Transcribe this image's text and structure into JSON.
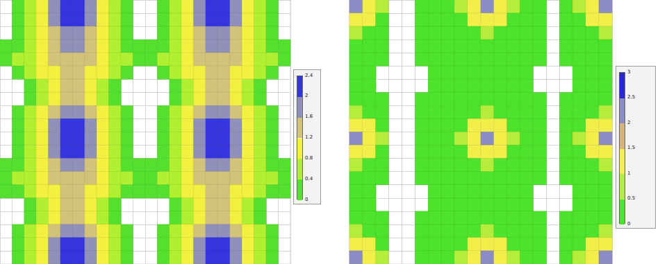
{
  "chart_data": [
    {
      "type": "heatmap",
      "grid": true,
      "tick_labels": false,
      "cells": [
        [
          null,
          0.2,
          0.6,
          1,
          1.8,
          2.2,
          2.2,
          1.8,
          1,
          0.6,
          0.2,
          null,
          null,
          0.2,
          0.6,
          1,
          1.8,
          2.2,
          2.2,
          1.8,
          1,
          0.6,
          0.2,
          null
        ],
        [
          null,
          0.2,
          0.6,
          1,
          1.8,
          2.2,
          2.2,
          1.8,
          1,
          0.6,
          0.2,
          null,
          null,
          0.2,
          0.6,
          1,
          1.8,
          2.2,
          2.2,
          1.8,
          1,
          0.6,
          0.2,
          null
        ],
        [
          null,
          0.2,
          0.6,
          1,
          1.4,
          1.8,
          1.8,
          1.4,
          1,
          0.6,
          0.2,
          null,
          null,
          0.2,
          0.6,
          1,
          1.4,
          1.8,
          1.8,
          1.4,
          1,
          0.6,
          0.2,
          null
        ],
        [
          0.2,
          0.2,
          0.6,
          1,
          1.4,
          1.8,
          1.8,
          1.4,
          1,
          0.6,
          0.2,
          0.2,
          0.2,
          0.2,
          0.6,
          1,
          1.4,
          1.8,
          1.8,
          1.4,
          1,
          0.6,
          0.2,
          0.2
        ],
        [
          0.2,
          0.6,
          0.6,
          1,
          1.4,
          1.4,
          1.4,
          1.4,
          1,
          0.6,
          0.6,
          0.2,
          0.2,
          0.6,
          0.6,
          1,
          1.4,
          1.4,
          1.4,
          1.4,
          1,
          0.6,
          0.6,
          0.2
        ],
        [
          null,
          0.2,
          0.6,
          1,
          1,
          1.4,
          1.4,
          1,
          1,
          0.6,
          0.2,
          null,
          null,
          0.2,
          0.6,
          1,
          1,
          1.4,
          1.4,
          1,
          1,
          0.6,
          0.2,
          null
        ],
        [
          null,
          null,
          0.2,
          0.6,
          1,
          1.4,
          1.4,
          1,
          0.6,
          0.2,
          null,
          null,
          null,
          null,
          0.2,
          0.6,
          1,
          1.4,
          1.4,
          1,
          0.6,
          0.2,
          null,
          null
        ],
        [
          null,
          null,
          0.2,
          0.6,
          1,
          1.4,
          1.4,
          1,
          0.6,
          0.2,
          null,
          null,
          null,
          null,
          0.2,
          0.6,
          1,
          1.4,
          1.4,
          1,
          0.6,
          0.2,
          null,
          null
        ],
        [
          null,
          0.2,
          0.6,
          1,
          1.4,
          1.8,
          1.8,
          1.4,
          1,
          0.6,
          0.2,
          null,
          null,
          0.2,
          0.6,
          1,
          1.4,
          1.8,
          1.8,
          1.4,
          1,
          0.6,
          0.2,
          null
        ],
        [
          null,
          0.2,
          0.6,
          1,
          1.8,
          2.2,
          2.2,
          1.8,
          1,
          0.6,
          0.2,
          null,
          null,
          0.2,
          0.6,
          1,
          1.8,
          2.2,
          2.2,
          1.8,
          1,
          0.6,
          0.2,
          null
        ],
        [
          null,
          0.2,
          0.6,
          1,
          1.8,
          2.2,
          2.2,
          1.8,
          1,
          0.6,
          0.2,
          null,
          null,
          0.2,
          0.6,
          1,
          1.8,
          2.2,
          2.2,
          1.8,
          1,
          0.6,
          0.2,
          null
        ],
        [
          null,
          0.2,
          0.6,
          1,
          1.8,
          2.2,
          2.2,
          1.8,
          1,
          0.6,
          0.2,
          null,
          null,
          0.2,
          0.6,
          1,
          1.8,
          2.2,
          2.2,
          1.8,
          1,
          0.6,
          0.2,
          null
        ],
        [
          0.2,
          0.2,
          0.6,
          1,
          1.4,
          1.8,
          1.8,
          1.4,
          1,
          0.6,
          0.2,
          0.2,
          0.2,
          0.2,
          0.6,
          1,
          1.4,
          1.8,
          1.8,
          1.4,
          1,
          0.6,
          0.2,
          0.2
        ],
        [
          0.2,
          0.6,
          0.6,
          1,
          1.4,
          1.4,
          1.4,
          1.4,
          1,
          0.6,
          0.6,
          0.2,
          0.2,
          0.6,
          0.6,
          1,
          1.4,
          1.4,
          1.4,
          1.4,
          1,
          0.6,
          0.6,
          0.2
        ],
        [
          0.2,
          0.2,
          0.6,
          1,
          1,
          1.4,
          1.4,
          1,
          1,
          0.6,
          0.2,
          0.2,
          0.2,
          0.2,
          0.6,
          1,
          1,
          1.4,
          1.4,
          1,
          1,
          0.6,
          0.2,
          0.2
        ],
        [
          null,
          null,
          0.2,
          0.6,
          1,
          1.4,
          1.4,
          1,
          0.6,
          0.2,
          null,
          null,
          null,
          null,
          0.2,
          0.6,
          1,
          1.4,
          1.4,
          1,
          0.6,
          0.2,
          null,
          null
        ],
        [
          null,
          null,
          0.2,
          0.6,
          1,
          1.4,
          1.4,
          1,
          0.6,
          0.2,
          null,
          null,
          null,
          null,
          0.2,
          0.6,
          1,
          1.4,
          1.4,
          1,
          0.6,
          0.2,
          null,
          null
        ],
        [
          null,
          0.2,
          0.6,
          1,
          1.4,
          1.8,
          1.8,
          1.4,
          1,
          0.6,
          0.2,
          null,
          null,
          0.2,
          0.6,
          1,
          1.4,
          1.8,
          1.8,
          1.4,
          1,
          0.6,
          0.2,
          null
        ],
        [
          null,
          0.2,
          0.6,
          1,
          1.8,
          2.2,
          2.2,
          1.8,
          1,
          0.6,
          0.2,
          null,
          null,
          0.2,
          0.6,
          1,
          1.8,
          2.2,
          2.2,
          1.8,
          1,
          0.6,
          0.2,
          null
        ],
        [
          null,
          0.2,
          0.6,
          1,
          1.8,
          2.2,
          2.2,
          1.8,
          1,
          0.6,
          0.2,
          null,
          null,
          0.2,
          0.6,
          1,
          1.8,
          2.2,
          2.2,
          1.8,
          1,
          0.6,
          0.2,
          null
        ]
      ],
      "color_bar": {
        "range": [
          0,
          2.4
        ],
        "ticks": [
          0,
          0.4,
          0.8,
          1.2,
          1.6,
          2,
          2.4
        ],
        "colors": [
          "#55e030",
          "#b0f030",
          "#f2f040",
          "#d2c27a",
          "#9090b8",
          "#3535e0"
        ]
      }
    },
    {
      "type": "heatmap",
      "grid": true,
      "tick_labels": false,
      "cells": [
        [
          2.2,
          1.4,
          0.6,
          null,
          null,
          0.2,
          0.2,
          0.2,
          0.6,
          1.4,
          2.2,
          1.4,
          0.6,
          0.2,
          0.2,
          null,
          0.2,
          0.6,
          1.4,
          2.2
        ],
        [
          1.4,
          1,
          0.2,
          null,
          null,
          0.2,
          0.2,
          0.2,
          0.2,
          1,
          1.4,
          1,
          0.2,
          0.2,
          0.2,
          null,
          0.2,
          0.2,
          1,
          1.4
        ],
        [
          0.6,
          0.2,
          0.2,
          null,
          null,
          0.2,
          0.2,
          0.2,
          0.2,
          0.2,
          0.6,
          0.2,
          0.2,
          0.2,
          0.2,
          null,
          0.2,
          0.2,
          0.2,
          0.6
        ],
        [
          0.2,
          0.2,
          0.2,
          null,
          null,
          0.2,
          0.2,
          0.2,
          0.2,
          0.2,
          0.2,
          0.2,
          0.2,
          0.2,
          0.2,
          null,
          0.2,
          0.2,
          0.2,
          0.2
        ],
        [
          0.2,
          0.2,
          0.2,
          null,
          null,
          0.2,
          0.2,
          0.2,
          0.2,
          0.2,
          0.2,
          0.2,
          0.2,
          0.2,
          0.2,
          null,
          0.2,
          0.2,
          0.2,
          0.2
        ],
        [
          0.2,
          0.2,
          null,
          null,
          null,
          null,
          0.2,
          0.2,
          0.2,
          0.2,
          0.2,
          0.2,
          0.2,
          0.2,
          null,
          null,
          null,
          0.2,
          0.2,
          0.2
        ],
        [
          0.2,
          0.2,
          null,
          null,
          null,
          null,
          0.2,
          0.2,
          0.2,
          0.2,
          0.2,
          0.2,
          0.2,
          0.2,
          null,
          null,
          null,
          0.2,
          0.2,
          0.2
        ],
        [
          0.2,
          0.2,
          0.2,
          null,
          null,
          0.2,
          0.2,
          0.2,
          0.2,
          0.2,
          0.2,
          0.2,
          0.2,
          0.2,
          0.2,
          null,
          0.2,
          0.2,
          0.2,
          0.2
        ],
        [
          0.6,
          0.2,
          0.2,
          null,
          null,
          0.2,
          0.2,
          0.2,
          0.2,
          0.2,
          0.6,
          0.2,
          0.2,
          0.2,
          0.2,
          null,
          0.2,
          0.2,
          0.2,
          0.6
        ],
        [
          1.4,
          1,
          0.2,
          null,
          null,
          0.2,
          0.2,
          0.2,
          0.2,
          1,
          1.4,
          1,
          0.2,
          0.2,
          0.2,
          null,
          0.2,
          0.2,
          1,
          1.4
        ],
        [
          2.2,
          1.4,
          0.6,
          null,
          null,
          0.2,
          0.2,
          0.2,
          0.6,
          1.4,
          2.2,
          1.4,
          0.6,
          0.2,
          0.2,
          null,
          0.2,
          0.6,
          1.4,
          2.2
        ],
        [
          1.4,
          1,
          0.2,
          null,
          null,
          0.2,
          0.2,
          0.2,
          0.2,
          1,
          1.4,
          1,
          0.2,
          0.2,
          0.2,
          null,
          0.2,
          0.2,
          1,
          1.4
        ],
        [
          0.6,
          0.2,
          0.2,
          null,
          null,
          0.2,
          0.2,
          0.2,
          0.2,
          0.2,
          0.6,
          0.2,
          0.2,
          0.2,
          0.2,
          null,
          0.2,
          0.2,
          0.2,
          0.6
        ],
        [
          0.2,
          0.2,
          0.2,
          null,
          null,
          0.2,
          0.2,
          0.2,
          0.2,
          0.2,
          0.2,
          0.2,
          0.2,
          0.2,
          0.2,
          null,
          0.2,
          0.2,
          0.2,
          0.2
        ],
        [
          0.2,
          0.2,
          null,
          null,
          null,
          null,
          0.2,
          0.2,
          0.2,
          0.2,
          0.2,
          0.2,
          0.2,
          0.2,
          null,
          null,
          null,
          0.2,
          0.2,
          0.2
        ],
        [
          0.2,
          0.2,
          null,
          null,
          null,
          null,
          0.2,
          0.2,
          0.2,
          0.2,
          0.2,
          0.2,
          0.2,
          0.2,
          null,
          null,
          null,
          0.2,
          0.2,
          0.2
        ],
        [
          0.2,
          0.2,
          0.2,
          null,
          null,
          0.2,
          0.2,
          0.2,
          0.2,
          0.2,
          0.2,
          0.2,
          0.2,
          0.2,
          0.2,
          null,
          0.2,
          0.2,
          0.2,
          0.2
        ],
        [
          0.6,
          0.2,
          0.2,
          null,
          null,
          0.2,
          0.2,
          0.2,
          0.2,
          0.2,
          0.6,
          0.2,
          0.2,
          0.2,
          0.2,
          null,
          0.2,
          0.2,
          0.2,
          0.6
        ],
        [
          1.4,
          1,
          0.2,
          null,
          null,
          0.2,
          0.2,
          0.2,
          0.2,
          1,
          1.4,
          1,
          0.2,
          0.2,
          0.2,
          null,
          0.2,
          0.2,
          1,
          1.4
        ],
        [
          2.2,
          1.4,
          0.6,
          null,
          null,
          0.2,
          0.2,
          0.2,
          0.6,
          1.4,
          2.2,
          1.4,
          0.6,
          0.2,
          0.2,
          null,
          0.2,
          0.6,
          1.4,
          2.2
        ]
      ],
      "color_bar": {
        "range": [
          0,
          3
        ],
        "ticks": [
          0,
          0.5,
          1,
          1.5,
          2,
          2.5,
          3
        ],
        "colors": [
          "#4de22c",
          "#b4ee3a",
          "#f2ee4a",
          "#d4b47c",
          "#8c8cc4",
          "#2828d4"
        ]
      }
    }
  ]
}
